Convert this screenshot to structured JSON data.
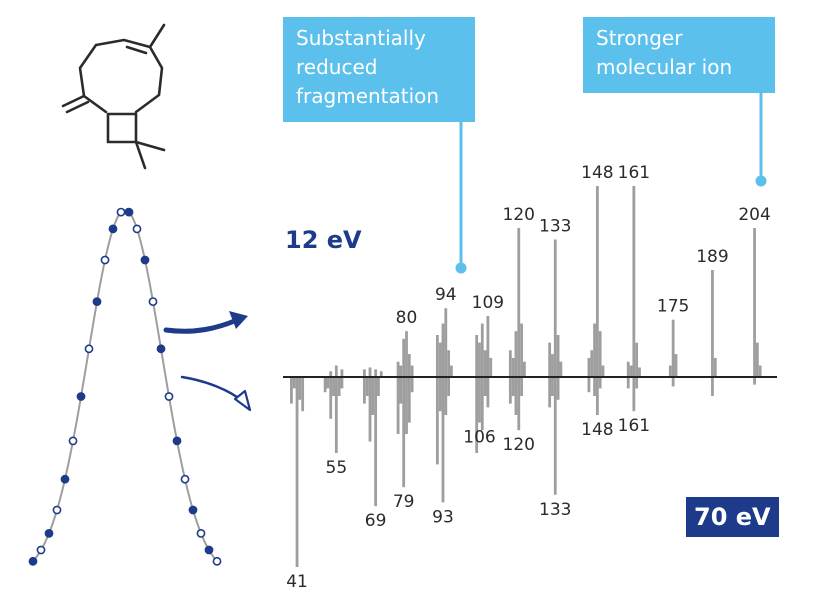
{
  "callouts": {
    "left": "Substantially reduced fragmentation",
    "right": "Stronger molecular ion"
  },
  "energy_labels": {
    "top": "12 eV",
    "bottom": "70 eV"
  },
  "colors": {
    "callout": "#5bc0eb",
    "navy": "#1e3a8a",
    "peaks": "#9e9e9e",
    "trace": "#9e9e9e"
  },
  "molecule_icon": "caryophyllene-structure-icon",
  "chromatogram_icon": "gaussian-peak-scan-icon",
  "chart_data": {
    "type": "bar",
    "xlabel": "",
    "ylabel": "",
    "xlim": [
      36,
      212
    ],
    "series": [
      {
        "name": "12 eV",
        "direction": "up",
        "labeled_peaks": [
          {
            "mz": 80,
            "label": "80"
          },
          {
            "mz": 94,
            "label": "94"
          },
          {
            "mz": 109,
            "label": "109"
          },
          {
            "mz": 120,
            "label": "120"
          },
          {
            "mz": 133,
            "label": "133"
          },
          {
            "mz": 148,
            "label": "148"
          },
          {
            "mz": 161,
            "label": "161"
          },
          {
            "mz": 175,
            "label": "175"
          },
          {
            "mz": 189,
            "label": "189"
          },
          {
            "mz": 204,
            "label": "204"
          }
        ],
        "peaks": [
          [
            53,
            3
          ],
          [
            55,
            6
          ],
          [
            57,
            4
          ],
          [
            65,
            4
          ],
          [
            67,
            5
          ],
          [
            69,
            4
          ],
          [
            71,
            3
          ],
          [
            77,
            8
          ],
          [
            78,
            6
          ],
          [
            79,
            20
          ],
          [
            80,
            24
          ],
          [
            81,
            12
          ],
          [
            82,
            6
          ],
          [
            91,
            22
          ],
          [
            92,
            18
          ],
          [
            93,
            28
          ],
          [
            94,
            36
          ],
          [
            95,
            14
          ],
          [
            96,
            6
          ],
          [
            105,
            22
          ],
          [
            106,
            18
          ],
          [
            107,
            28
          ],
          [
            108,
            14
          ],
          [
            109,
            32
          ],
          [
            110,
            10
          ],
          [
            117,
            14
          ],
          [
            118,
            10
          ],
          [
            119,
            24
          ],
          [
            120,
            78
          ],
          [
            121,
            28
          ],
          [
            122,
            8
          ],
          [
            131,
            18
          ],
          [
            132,
            12
          ],
          [
            133,
            72
          ],
          [
            134,
            22
          ],
          [
            135,
            8
          ],
          [
            145,
            10
          ],
          [
            146,
            14
          ],
          [
            147,
            28
          ],
          [
            148,
            100
          ],
          [
            149,
            24
          ],
          [
            150,
            6
          ],
          [
            159,
            8
          ],
          [
            160,
            6
          ],
          [
            161,
            100
          ],
          [
            162,
            18
          ],
          [
            163,
            5
          ],
          [
            174,
            6
          ],
          [
            175,
            30
          ],
          [
            176,
            12
          ],
          [
            189,
            56
          ],
          [
            190,
            10
          ],
          [
            204,
            78
          ],
          [
            205,
            18
          ],
          [
            206,
            6
          ]
        ]
      },
      {
        "name": "70 eV",
        "direction": "down",
        "labeled_peaks": [
          {
            "mz": 41,
            "label": "41"
          },
          {
            "mz": 55,
            "label": "55"
          },
          {
            "mz": 69,
            "label": "69"
          },
          {
            "mz": 79,
            "label": "79"
          },
          {
            "mz": 93,
            "label": "93"
          },
          {
            "mz": 106,
            "label": "106"
          },
          {
            "mz": 120,
            "label": "120"
          },
          {
            "mz": 133,
            "label": "133"
          },
          {
            "mz": 148,
            "label": "148"
          },
          {
            "mz": 161,
            "label": "161"
          }
        ],
        "peaks": [
          [
            39,
            14
          ],
          [
            40,
            6
          ],
          [
            41,
            100
          ],
          [
            42,
            12
          ],
          [
            43,
            18
          ],
          [
            51,
            8
          ],
          [
            52,
            6
          ],
          [
            53,
            22
          ],
          [
            54,
            10
          ],
          [
            55,
            40
          ],
          [
            56,
            10
          ],
          [
            57,
            6
          ],
          [
            65,
            14
          ],
          [
            66,
            10
          ],
          [
            67,
            34
          ],
          [
            68,
            20
          ],
          [
            69,
            68
          ],
          [
            70,
            10
          ],
          [
            77,
            30
          ],
          [
            78,
            14
          ],
          [
            79,
            58
          ],
          [
            80,
            30
          ],
          [
            81,
            24
          ],
          [
            82,
            8
          ],
          [
            91,
            46
          ],
          [
            92,
            18
          ],
          [
            93,
            66
          ],
          [
            94,
            20
          ],
          [
            95,
            10
          ],
          [
            105,
            40
          ],
          [
            106,
            24
          ],
          [
            107,
            28
          ],
          [
            108,
            10
          ],
          [
            109,
            16
          ],
          [
            117,
            14
          ],
          [
            118,
            10
          ],
          [
            119,
            20
          ],
          [
            120,
            28
          ],
          [
            121,
            10
          ],
          [
            131,
            16
          ],
          [
            132,
            10
          ],
          [
            133,
            62
          ],
          [
            134,
            12
          ],
          [
            145,
            8
          ],
          [
            147,
            10
          ],
          [
            148,
            20
          ],
          [
            149,
            6
          ],
          [
            159,
            6
          ],
          [
            161,
            18
          ],
          [
            162,
            6
          ],
          [
            175,
            5
          ],
          [
            189,
            10
          ],
          [
            204,
            4
          ]
        ]
      }
    ]
  }
}
